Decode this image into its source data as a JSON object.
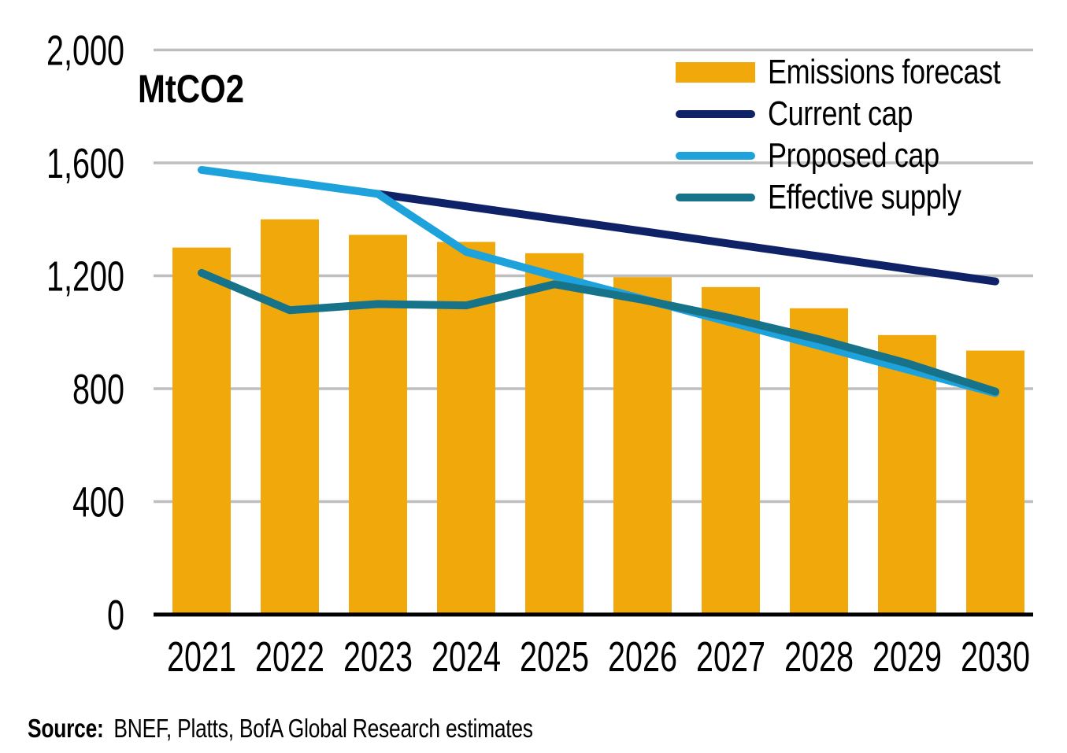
{
  "chart_data": {
    "type": "combo",
    "title": "",
    "xlabel": "",
    "ylabel": "MtCO2",
    "ylim": [
      0,
      2000
    ],
    "grid": true,
    "legend_position": "top-right",
    "gridline_color": "#BEBEBE",
    "axis_color": "#000000",
    "categories": [
      "2021",
      "2022",
      "2023",
      "2024",
      "2025",
      "2026",
      "2027",
      "2028",
      "2029",
      "2030"
    ],
    "y_ticks": [
      {
        "value": 0,
        "label": "0"
      },
      {
        "value": 400,
        "label": "400"
      },
      {
        "value": 800,
        "label": "800"
      },
      {
        "value": 1200,
        "label": "1,200"
      },
      {
        "value": 1600,
        "label": "1,600"
      },
      {
        "value": 2000,
        "label": "2,000"
      }
    ],
    "series": [
      {
        "name": "Emissions forecast",
        "type": "bar",
        "color": "#F0A80A",
        "values": [
          1300,
          1400,
          1345,
          1320,
          1280,
          1195,
          1160,
          1085,
          990,
          935
        ]
      },
      {
        "name": "Current cap",
        "type": "line",
        "color": "#0F2167",
        "values": [
          null,
          null,
          1490,
          1446,
          1402,
          1358,
          1313,
          1269,
          1224,
          1180
        ]
      },
      {
        "name": "Proposed cap",
        "type": "line",
        "color": "#1DA2DC",
        "values": [
          1575,
          1533,
          1490,
          1285,
          1200,
          1118,
          1035,
          952,
          868,
          785
        ]
      },
      {
        "name": "Effective supply",
        "type": "line",
        "color": "#17738A",
        "values": [
          1210,
          1078,
          1100,
          1095,
          1170,
          1115,
          1050,
          975,
          890,
          790
        ]
      }
    ]
  },
  "source": {
    "label": "Source:",
    "text": "BNEF, Platts, BofA Global Research estimates"
  }
}
